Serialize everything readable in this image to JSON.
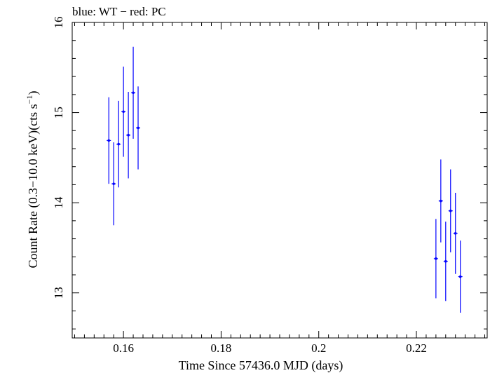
{
  "chart_data": {
    "type": "scatter",
    "title": "blue: WT − red: PC",
    "xlabel": "Time Since 57436.0 MJD (days)",
    "ylabel": "Count Rate (0.3−10.0 keV)(cts s",
    "ylabel_sup": "−1",
    "ylabel_end": ")",
    "xlim": [
      0.1495,
      0.2345
    ],
    "ylim": [
      12.5,
      16.0
    ],
    "xticks": [
      0.16,
      0.18,
      0.2,
      0.22
    ],
    "xtick_labels": [
      "0.16",
      "0.18",
      "0.2",
      "0.22"
    ],
    "yticks": [
      13,
      14,
      15,
      16
    ],
    "ytick_labels": [
      "13",
      "14",
      "15",
      "16"
    ],
    "grid": false,
    "series": [
      {
        "color": "#0000ff",
        "points": [
          {
            "x": 0.157,
            "y": 14.69,
            "yerr": 0.48
          },
          {
            "x": 0.158,
            "y": 14.21,
            "yerr": 0.46
          },
          {
            "x": 0.159,
            "y": 14.65,
            "yerr": 0.48
          },
          {
            "x": 0.16,
            "y": 15.01,
            "yerr": 0.5
          },
          {
            "x": 0.161,
            "y": 14.75,
            "yerr": 0.48
          },
          {
            "x": 0.162,
            "y": 15.22,
            "yerr": 0.51
          },
          {
            "x": 0.163,
            "y": 14.83,
            "yerr": 0.46
          },
          {
            "x": 0.224,
            "y": 13.38,
            "yerr": 0.44
          },
          {
            "x": 0.225,
            "y": 14.02,
            "yerr": 0.46
          },
          {
            "x": 0.226,
            "y": 13.35,
            "yerr": 0.44
          },
          {
            "x": 0.227,
            "y": 13.91,
            "yerr": 0.46
          },
          {
            "x": 0.228,
            "y": 13.66,
            "yerr": 0.45
          },
          {
            "x": 0.229,
            "y": 13.18,
            "yerr": 0.4
          }
        ]
      }
    ]
  }
}
